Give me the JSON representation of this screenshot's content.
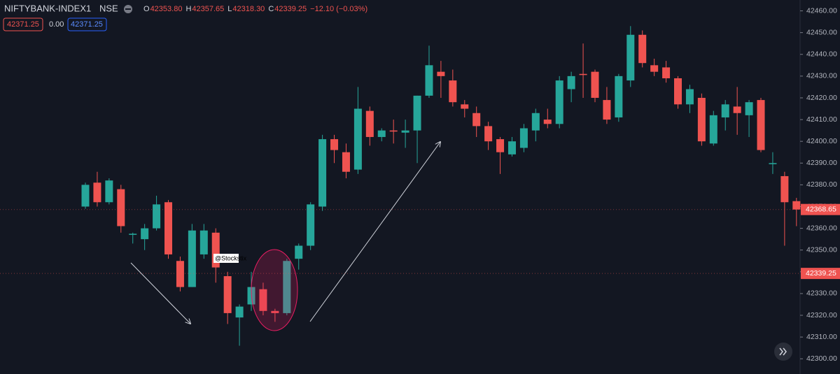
{
  "chart_data": {
    "type": "candlestick",
    "title": "NIFTYBANK-INDEX",
    "interval": "1",
    "exchange": "NSE",
    "legend": {
      "labels": [
        "O",
        "H",
        "L",
        "C"
      ],
      "values": [
        "42353.80",
        "42357.65",
        "42318.30",
        "42339.25"
      ],
      "change": "−12.10 (−0.03%)"
    },
    "price_tags": [
      "42371.25",
      "0.00",
      "42371.25"
    ],
    "annotation": "@Stockstix",
    "up_color": "#26a69a",
    "down_color": "#ef5350",
    "grid": false,
    "ylim": [
      42293,
      42465
    ],
    "yticks": [
      {
        "value": 42300,
        "label": "42300.00"
      },
      {
        "value": 42310,
        "label": "42310.00"
      },
      {
        "value": 42320,
        "label": "42320.00"
      },
      {
        "value": 42330,
        "label": "42330.00"
      },
      {
        "value": 42340,
        "label": "42340.00"
      },
      {
        "value": 42350,
        "label": "42350.00"
      },
      {
        "value": 42360,
        "label": "42360.00"
      },
      {
        "value": 42370,
        "label": "42370.00"
      },
      {
        "value": 42380,
        "label": "42380.00"
      },
      {
        "value": 42390,
        "label": "42390.00"
      },
      {
        "value": 42400,
        "label": "42400.00"
      },
      {
        "value": 42410,
        "label": "42410.00"
      },
      {
        "value": 42420,
        "label": "42420.00"
      },
      {
        "value": 42430,
        "label": "42430.00"
      },
      {
        "value": 42440,
        "label": "42440.00"
      },
      {
        "value": 42450,
        "label": "42450.00"
      },
      {
        "value": 42460,
        "label": "42460.00"
      }
    ],
    "price_lines": [
      42368.65,
      42339.25
    ],
    "open": [
      42370,
      42381,
      42372,
      42378,
      42357,
      42355,
      42360,
      42372,
      42345,
      42333,
      42348,
      42358,
      42338,
      42319,
      42325,
      42332,
      42322,
      42321,
      42346,
      42352,
      42370,
      42401,
      42395,
      42387,
      42414,
      42402,
      42405,
      42404,
      42405,
      42421,
      42432,
      42428,
      42417,
      42413,
      42407,
      42401,
      42394,
      42397,
      42405,
      42410,
      42408,
      42424,
      42431,
      42432,
      42419,
      42411,
      42428,
      42449,
      42435,
      42434,
      42429,
      42417,
      42420,
      42399,
      42411,
      42416,
      42412,
      42419,
      42389.5,
      42384,
      42372.5
    ],
    "high": [
      42381,
      42386,
      42383,
      42380,
      42358,
      42362,
      42375,
      42373,
      42347,
      42362,
      42362,
      42360,
      42340,
      42325,
      42340,
      42335,
      42323,
      42346,
      42353,
      42372,
      42403,
      42403,
      42399,
      42425,
      42416,
      42406,
      42410,
      42410,
      42421,
      42444,
      42437,
      42433,
      42419,
      42416,
      42409,
      42402,
      42402,
      42408,
      42415,
      42415,
      42430,
      42432,
      42445,
      42433,
      42425,
      42431,
      42453,
      42451,
      42438,
      42437,
      42430,
      42426,
      42422,
      42414,
      42419,
      42425,
      42419,
      42420,
      42395,
      42386,
      42374
    ],
    "low": [
      42369,
      42370,
      42371,
      42358,
      42353,
      42350,
      42359,
      42346,
      42331,
      42333,
      42346,
      42335,
      42316,
      42306,
      42322,
      42320,
      42317,
      42320,
      42341,
      42350,
      42368,
      42390,
      42383,
      42385,
      42398,
      42400,
      42399,
      42397,
      42390,
      42420,
      42420,
      42416,
      42411,
      42402,
      42396,
      42385,
      42393,
      42395,
      42400,
      42406,
      42406,
      42418,
      42420,
      42418,
      42408,
      42409,
      42425,
      42434,
      42430,
      42427,
      42415,
      42413,
      42398,
      42398,
      42405,
      42403,
      42402,
      42395,
      42385,
      42352,
      42361
    ],
    "close": [
      42380,
      42372,
      42382,
      42361,
      42357.5,
      42360,
      42371,
      42348,
      42333,
      42359,
      42359,
      42342,
      42321,
      42324,
      42333,
      42322,
      42321,
      42345,
      42352,
      42371,
      42401,
      42396,
      42386,
      42415,
      42402,
      42405,
      42404.5,
      42405,
      42421,
      42435,
      42430,
      42418,
      42415,
      42407,
      42400,
      42395,
      42400,
      42406,
      42413,
      42408,
      42428,
      42430,
      42430.5,
      42420,
      42410,
      42430,
      42449,
      42436,
      42432,
      42429,
      42417,
      42424,
      42400,
      42412,
      42417,
      42413,
      42418,
      42396,
      42390,
      42372,
      42368.65
    ]
  }
}
